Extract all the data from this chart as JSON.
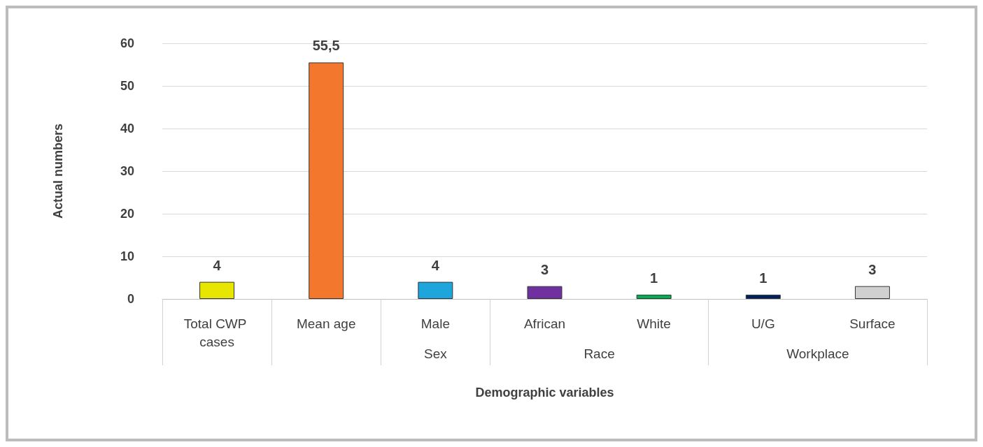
{
  "chart_data": {
    "type": "bar",
    "xlabel": "Demographic variables",
    "ylabel": "Actual numbers",
    "categories": [
      "Total CWP cases",
      "Mean age",
      "Male",
      "African",
      "White",
      "U/G",
      "Surface"
    ],
    "values": [
      4,
      55.5,
      4,
      3,
      1,
      1,
      3
    ],
    "colors": [
      "#e6e600",
      "#f4772e",
      "#1ea5dc",
      "#7030a0",
      "#00b050",
      "#002060",
      "#d0d0d0"
    ],
    "value_labels": [
      "4",
      "55,5",
      "4",
      "3",
      "1",
      "1",
      "3"
    ],
    "annotations": [
      "Sex",
      "Race",
      "Workplace"
    ],
    "ylim": [
      0,
      60
    ],
    "yticks": [
      0,
      10,
      20,
      30,
      40,
      50,
      60
    ],
    "grid": "y"
  }
}
